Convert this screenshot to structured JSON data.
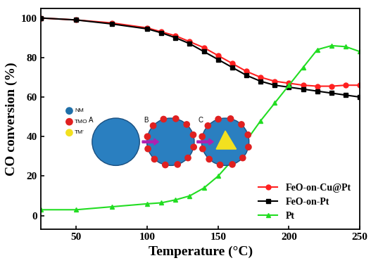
{
  "chart_data": {
    "type": "line",
    "x_label": "Temperature (°C)",
    "y_label": "CO conversion (%)",
    "x": [
      25,
      50,
      75,
      100,
      110,
      120,
      130,
      140,
      150,
      160,
      170,
      180,
      190,
      200,
      210,
      220,
      230,
      240,
      250
    ],
    "series": [
      {
        "name": "FeO-on-Cu@Pt",
        "color": "#ff2020",
        "marker": "circle",
        "values": [
          100,
          99,
          97.5,
          95,
          93,
          91,
          88,
          85,
          81,
          77,
          73,
          70,
          68,
          67,
          66,
          65.5,
          65.5,
          66,
          66
        ]
      },
      {
        "name": "FeO-on-Pt",
        "color": "#000000",
        "marker": "square",
        "values": [
          100,
          99,
          97,
          94.5,
          92.5,
          90,
          87,
          83,
          79,
          75,
          71,
          68,
          66,
          65,
          64,
          63,
          62,
          61,
          60
        ]
      },
      {
        "name": "Pt",
        "color": "#22dd22",
        "marker": "triangle",
        "values": [
          3,
          3,
          4.5,
          6,
          6.5,
          8,
          10,
          14,
          20,
          28,
          38,
          48,
          57,
          66,
          75,
          84,
          86,
          85.5,
          83
        ]
      }
    ],
    "xlim": [
      25,
      250
    ],
    "xticks": [
      50,
      100,
      150,
      200,
      250
    ],
    "ylim": [
      -7,
      105
    ],
    "yticks": [
      0,
      20,
      40,
      60,
      80,
      100
    ],
    "legend": "lower right",
    "annotations": [
      "NM",
      "TMO",
      "TM'",
      "A",
      "B",
      "C"
    ]
  }
}
